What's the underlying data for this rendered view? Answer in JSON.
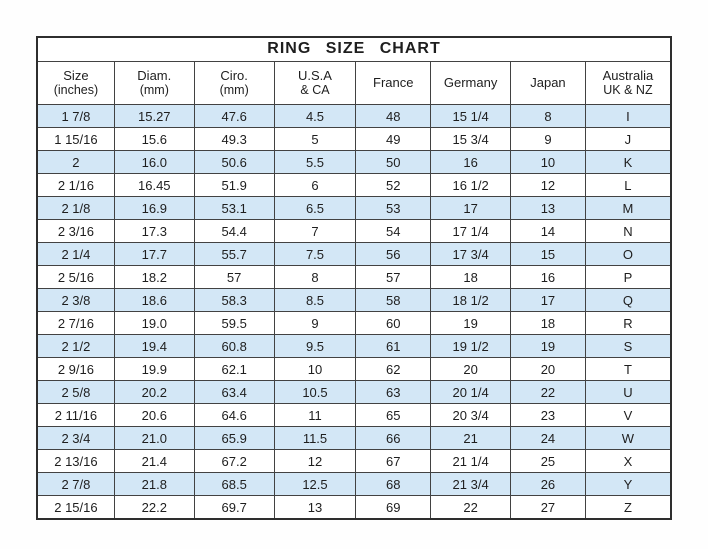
{
  "title": "RING  SIZE  CHART",
  "colors": {
    "row_stripe": "#d3e7f6",
    "row_base": "#ffffff",
    "border": "#424242",
    "text": "#1e1e1e"
  },
  "chart_data": {
    "type": "table",
    "title": "RING SIZE CHART",
    "columns": [
      {
        "label": "Size",
        "sublabel": "(inches)"
      },
      {
        "label": "Diam.",
        "sublabel": "(mm)"
      },
      {
        "label": "Ciro.",
        "sublabel": "(mm)"
      },
      {
        "label": "U.S.A",
        "sublabel": "& CA"
      },
      {
        "label": "France",
        "sublabel": ""
      },
      {
        "label": "Germany",
        "sublabel": ""
      },
      {
        "label": "Japan",
        "sublabel": ""
      },
      {
        "label": "Australia",
        "sublabel": "UK & NZ"
      }
    ],
    "rows": [
      [
        "1 7/8",
        "15.27",
        "47.6",
        "4.5",
        "48",
        "15 1/4",
        "8",
        "I"
      ],
      [
        "1 15/16",
        "15.6",
        "49.3",
        "5",
        "49",
        "15 3/4",
        "9",
        "J"
      ],
      [
        "2",
        "16.0",
        "50.6",
        "5.5",
        "50",
        "16",
        "10",
        "K"
      ],
      [
        "2 1/16",
        "16.45",
        "51.9",
        "6",
        "52",
        "16 1/2",
        "12",
        "L"
      ],
      [
        "2 1/8",
        "16.9",
        "53.1",
        "6.5",
        "53",
        "17",
        "13",
        "M"
      ],
      [
        "2 3/16",
        "17.3",
        "54.4",
        "7",
        "54",
        "17 1/4",
        "14",
        "N"
      ],
      [
        "2 1/4",
        "17.7",
        "55.7",
        "7.5",
        "56",
        "17 3/4",
        "15",
        "O"
      ],
      [
        "2 5/16",
        "18.2",
        "57",
        "8",
        "57",
        "18",
        "16",
        "P"
      ],
      [
        "2 3/8",
        "18.6",
        "58.3",
        "8.5",
        "58",
        "18 1/2",
        "17",
        "Q"
      ],
      [
        "2 7/16",
        "19.0",
        "59.5",
        "9",
        "60",
        "19",
        "18",
        "R"
      ],
      [
        "2 1/2",
        "19.4",
        "60.8",
        "9.5",
        "61",
        "19 1/2",
        "19",
        "S"
      ],
      [
        "2 9/16",
        "19.9",
        "62.1",
        "10",
        "62",
        "20",
        "20",
        "T"
      ],
      [
        "2 5/8",
        "20.2",
        "63.4",
        "10.5",
        "63",
        "20 1/4",
        "22",
        "U"
      ],
      [
        "2 11/16",
        "20.6",
        "64.6",
        "11",
        "65",
        "20 3/4",
        "23",
        "V"
      ],
      [
        "2 3/4",
        "21.0",
        "65.9",
        "11.5",
        "66",
        "21",
        "24",
        "W"
      ],
      [
        "2 13/16",
        "21.4",
        "67.2",
        "12",
        "67",
        "21 1/4",
        "25",
        "X"
      ],
      [
        "2 7/8",
        "21.8",
        "68.5",
        "12.5",
        "68",
        "21 3/4",
        "26",
        "Y"
      ],
      [
        "2 15/16",
        "22.2",
        "69.7",
        "13",
        "69",
        "22",
        "27",
        "Z"
      ]
    ]
  }
}
